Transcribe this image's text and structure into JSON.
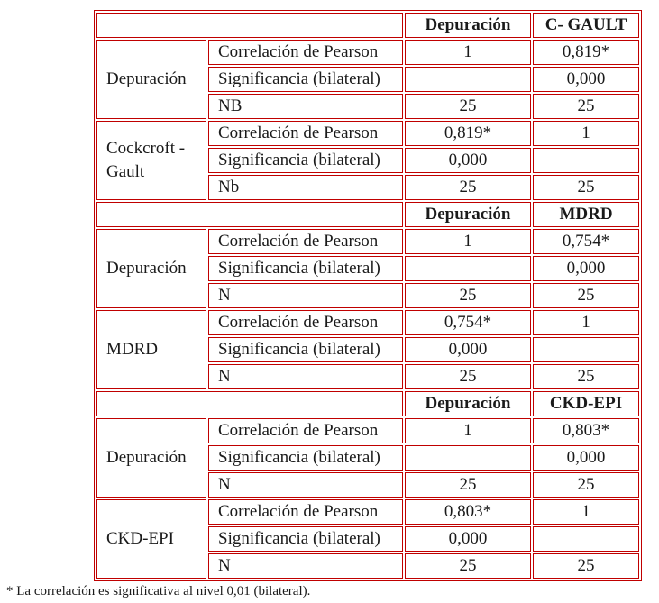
{
  "border_color": "#c00000",
  "footnote": "* La correlación es significativa al nivel 0,01 (bilateral).",
  "sections": [
    {
      "header": {
        "blank": "",
        "col1": "Depuración",
        "col2": "C- GAULT"
      },
      "groups": [
        {
          "label": "Depuración",
          "rows": [
            {
              "label": "Correlación de Pearson",
              "v1": "1",
              "v2": "0,819*"
            },
            {
              "label": "Significancia (bilateral)",
              "v1": "",
              "v2": "0,000"
            },
            {
              "label": "NB",
              "v1": "25",
              "v2": "25"
            }
          ]
        },
        {
          "label": "Cockcroft - Gault",
          "rows": [
            {
              "label": "Correlación de Pearson",
              "v1": "0,819*",
              "v2": "1"
            },
            {
              "label": "Significancia (bilateral)",
              "v1": "0,000",
              "v2": ""
            },
            {
              "label": "Nb",
              "v1": "25",
              "v2": "25"
            }
          ]
        }
      ]
    },
    {
      "header": {
        "blank": "",
        "col1": "Depuración",
        "col2": "MDRD"
      },
      "groups": [
        {
          "label": "Depuración",
          "rows": [
            {
              "label": "Correlación de Pearson",
              "v1": "1",
              "v2": "0,754*"
            },
            {
              "label": "Significancia (bilateral)",
              "v1": "",
              "v2": "0,000"
            },
            {
              "label": "N",
              "v1": "25",
              "v2": "25"
            }
          ]
        },
        {
          "label": "MDRD",
          "rows": [
            {
              "label": "Correlación de Pearson",
              "v1": "0,754*",
              "v2": "1"
            },
            {
              "label": "Significancia (bilateral)",
              "v1": "0,000",
              "v2": ""
            },
            {
              "label": "N",
              "v1": "25",
              "v2": "25"
            }
          ]
        }
      ]
    },
    {
      "header": {
        "blank": "",
        "col1": "Depuración",
        "col2": "CKD-EPI"
      },
      "groups": [
        {
          "label": "Depuración",
          "rows": [
            {
              "label": "Correlación de Pearson",
              "v1": "1",
              "v2": "0,803*"
            },
            {
              "label": "Significancia (bilateral)",
              "v1": "",
              "v2": "0,000"
            },
            {
              "label": "N",
              "v1": "25",
              "v2": "25"
            }
          ]
        },
        {
          "label": "CKD-EPI",
          "rows": [
            {
              "label": "Correlación de Pearson",
              "v1": "0,803*",
              "v2": "1"
            },
            {
              "label": "Significancia (bilateral)",
              "v1": "0,000",
              "v2": ""
            },
            {
              "label": "N",
              "v1": "25",
              "v2": "25"
            }
          ]
        }
      ]
    }
  ]
}
